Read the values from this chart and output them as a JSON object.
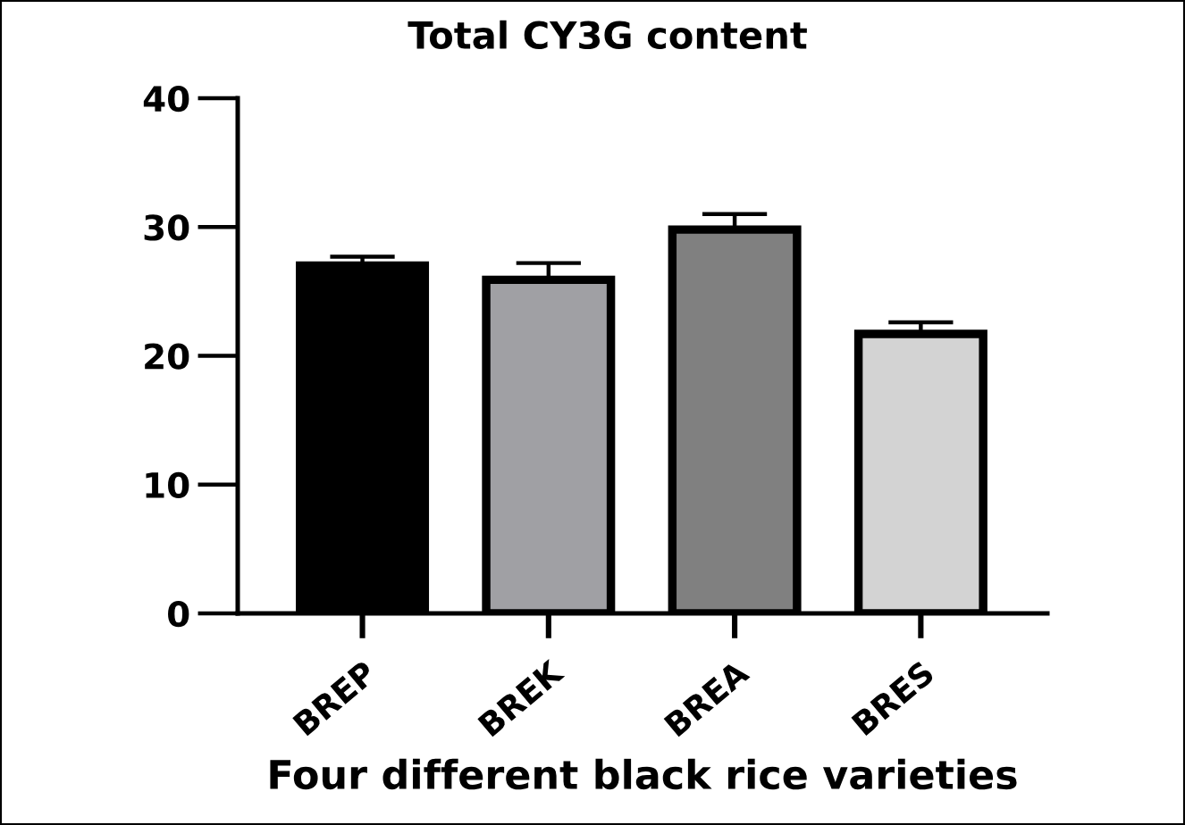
{
  "chart_data": {
    "type": "bar",
    "title": "Total CY3G content",
    "xlabel": "Four different black rice varieties",
    "categories": [
      "BREP",
      "BREK",
      "BREA",
      "BRES"
    ],
    "values": [
      27.0,
      25.9,
      29.8,
      21.7
    ],
    "errors": [
      0.7,
      1.3,
      1.2,
      0.9
    ],
    "colors": [
      "#000000",
      "#a0a0a4",
      "#808080",
      "#d3d3d3"
    ],
    "ylim": [
      0,
      40
    ],
    "yticks": [
      0,
      10,
      20,
      30,
      40
    ],
    "grid": false,
    "legend": false
  }
}
